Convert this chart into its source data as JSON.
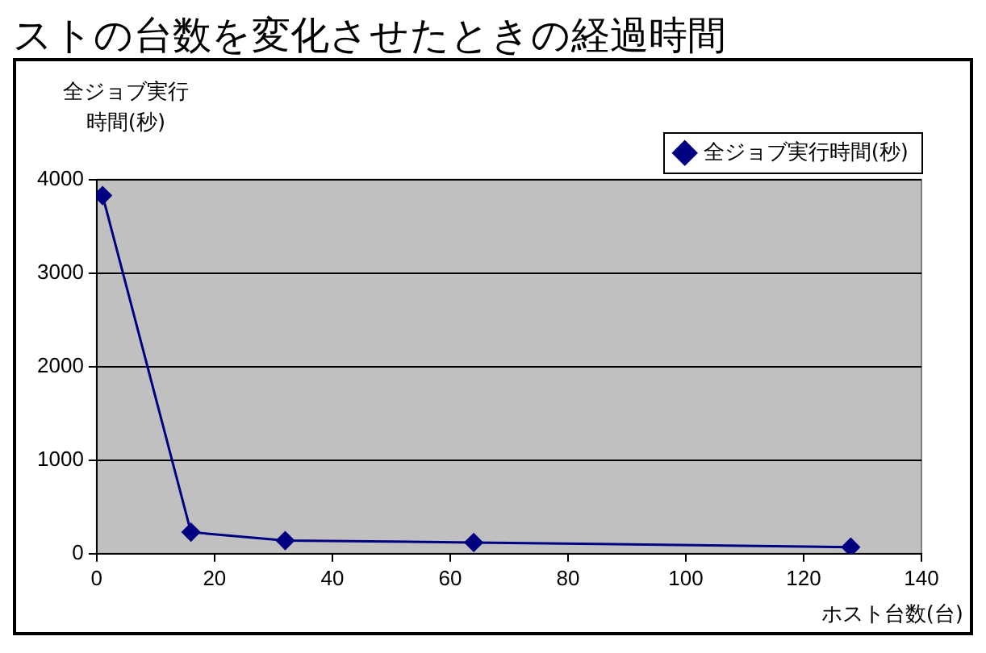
{
  "chart_data": {
    "type": "line",
    "title": "ストの台数を変化させたときの経過時間",
    "xlabel": "ホスト台数(台)",
    "ylabel": "全ジョブ実行時間(秒)",
    "x": [
      1,
      16,
      32,
      64,
      128
    ],
    "series": [
      {
        "name": "全ジョブ実行時間(秒)",
        "color": "#000080",
        "values": [
          3830,
          230,
          140,
          120,
          70
        ]
      }
    ],
    "xlim": [
      0,
      140
    ],
    "xticks": [
      0,
      20,
      40,
      60,
      80,
      100,
      120,
      140
    ],
    "ylim": [
      0,
      4000
    ],
    "yticks": [
      0,
      1000,
      2000,
      3000,
      4000
    ],
    "grid": "y",
    "legend": "top right",
    "marker": "diamond",
    "line_style": "solid"
  }
}
